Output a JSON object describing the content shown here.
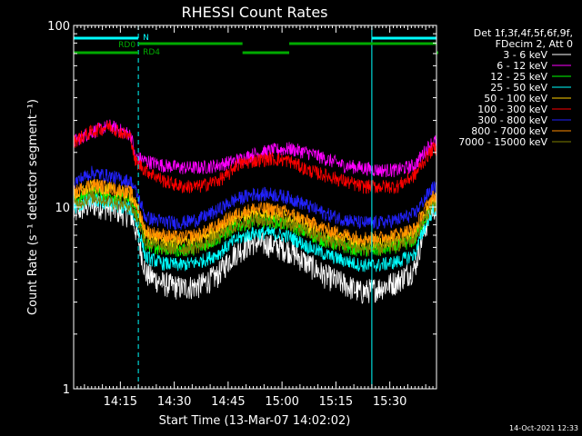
{
  "chart_data": {
    "type": "line",
    "title": "RHESSI Count Rates",
    "xlabel": "Start Time (13-Mar-07 14:02:02)",
    "ylabel": "Count Rate (s⁻¹ detector segment⁻¹)",
    "xlim_minutes": [
      0,
      101
    ],
    "ylim": [
      1,
      100
    ],
    "yscale": "log",
    "x_ticks": [
      {
        "label": "14:15",
        "minute": 13
      },
      {
        "label": "14:30",
        "minute": 28
      },
      {
        "label": "14:45",
        "minute": 43
      },
      {
        "label": "15:00",
        "minute": 58
      },
      {
        "label": "15:15",
        "minute": 73
      },
      {
        "label": "15:30",
        "minute": 88
      }
    ],
    "y_ticks": [
      {
        "label": "1",
        "value": 1
      },
      {
        "label": "10",
        "value": 10
      },
      {
        "label": "100",
        "value": 100
      }
    ],
    "legend_header": [
      "Det 1f,3f,4f,5f,6f,9f,",
      "FDecim 2, Att 0"
    ],
    "legend_position": "right",
    "series": [
      {
        "name": "3 - 6 keV",
        "color": "#ffffff",
        "x": [
          0,
          5,
          10,
          16,
          20,
          25,
          30,
          35,
          40,
          45,
          50,
          55,
          60,
          65,
          70,
          75,
          80,
          85,
          90,
          95,
          100
        ],
        "y": [
          9.3,
          10.4,
          9.9,
          9.0,
          4.3,
          3.8,
          3.6,
          3.7,
          4.2,
          5.6,
          6.4,
          6.2,
          5.8,
          4.9,
          4.2,
          3.8,
          3.4,
          3.6,
          3.9,
          4.6,
          10.0
        ]
      },
      {
        "name": "6 - 12 keV",
        "color": "#ff00ff",
        "x": [
          0,
          5,
          10,
          16,
          17,
          20,
          25,
          30,
          35,
          40,
          45,
          50,
          55,
          60,
          65,
          70,
          75,
          80,
          85,
          90,
          95,
          100
        ],
        "y": [
          23,
          26,
          28,
          25,
          19,
          18,
          17,
          16.5,
          16.5,
          17,
          18,
          19.5,
          20.5,
          21,
          20,
          18.5,
          17,
          16.5,
          16,
          16,
          17,
          23
        ]
      },
      {
        "name": "12 - 25 keV",
        "color": "#00ff00",
        "x": [
          0,
          5,
          10,
          16,
          20,
          25,
          30,
          35,
          40,
          45,
          50,
          55,
          60,
          65,
          70,
          75,
          80,
          85,
          90,
          95,
          100
        ],
        "y": [
          10.8,
          12.2,
          11.6,
          10.8,
          6.2,
          5.9,
          5.8,
          6.0,
          6.7,
          7.8,
          8.4,
          8.4,
          8.0,
          7.2,
          6.5,
          6.1,
          5.8,
          5.8,
          6.1,
          6.6,
          10.4
        ]
      },
      {
        "name": "25 - 50 keV",
        "color": "#00ffff",
        "x": [
          0,
          5,
          10,
          16,
          20,
          25,
          30,
          35,
          40,
          45,
          50,
          55,
          60,
          65,
          70,
          75,
          80,
          85,
          90,
          95,
          100
        ],
        "y": [
          9.8,
          11.0,
          10.4,
          9.8,
          5.3,
          4.9,
          4.8,
          5.0,
          5.5,
          6.6,
          7.2,
          7.2,
          6.9,
          6.1,
          5.5,
          5.1,
          4.8,
          4.8,
          5.0,
          5.5,
          9.6
        ]
      },
      {
        "name": "50 - 100 keV",
        "color": "#ffd000",
        "x": [
          0,
          5,
          10,
          16,
          20,
          25,
          30,
          35,
          40,
          45,
          50,
          55,
          60,
          65,
          70,
          75,
          80,
          85,
          90,
          95,
          100
        ],
        "y": [
          11.6,
          13.0,
          12.4,
          11.6,
          7.0,
          6.6,
          6.4,
          6.7,
          7.4,
          8.6,
          9.3,
          9.3,
          8.8,
          7.9,
          7.1,
          6.7,
          6.4,
          6.4,
          6.7,
          7.2,
          11.0
        ]
      },
      {
        "name": "100 - 300 keV",
        "color": "#ff0000",
        "x": [
          0,
          5,
          10,
          16,
          17,
          20,
          25,
          30,
          35,
          40,
          43,
          45,
          50,
          55,
          60,
          65,
          70,
          75,
          80,
          85,
          90,
          95,
          100
        ],
        "y": [
          23,
          26,
          28,
          24,
          18,
          16,
          14,
          13,
          13,
          14,
          15,
          17,
          18,
          18.5,
          18,
          16,
          15,
          14,
          13,
          13,
          13,
          15,
          21
        ]
      },
      {
        "name": "300 - 800 keV",
        "color": "#2222ff",
        "x": [
          0,
          5,
          10,
          16,
          20,
          25,
          30,
          35,
          40,
          45,
          50,
          55,
          60,
          65,
          70,
          75,
          80,
          85,
          90,
          95,
          100
        ],
        "y": [
          13.6,
          15.5,
          14.8,
          13.8,
          8.8,
          8.3,
          8.2,
          8.6,
          9.6,
          11.0,
          11.8,
          11.8,
          11.3,
          10.2,
          9.2,
          8.6,
          8.2,
          8.2,
          8.5,
          9.2,
          12.8
        ]
      },
      {
        "name": "800 - 7000 keV",
        "color": "#ff8c00",
        "x": [
          0,
          5,
          10,
          16,
          20,
          25,
          30,
          35,
          40,
          45,
          50,
          55,
          60,
          65,
          70,
          75,
          80,
          85,
          90,
          95,
          100
        ],
        "y": [
          12.0,
          13.4,
          12.8,
          12.0,
          7.4,
          7.0,
          6.8,
          7.1,
          7.9,
          9.1,
          9.8,
          9.8,
          9.3,
          8.4,
          7.6,
          7.1,
          6.8,
          6.8,
          7.1,
          7.6,
          11.4
        ]
      },
      {
        "name": "7000 - 15000 keV",
        "color": "#808000",
        "x": [
          0,
          5,
          10,
          16,
          20,
          25,
          30,
          35,
          40,
          45,
          50,
          55,
          60,
          65,
          70,
          75,
          80,
          85,
          90,
          95,
          100
        ],
        "y": [
          10.2,
          11.4,
          10.8,
          10.2,
          6.4,
          6.0,
          5.9,
          6.1,
          6.8,
          7.9,
          8.5,
          8.5,
          8.1,
          7.3,
          6.6,
          6.2,
          5.9,
          5.9,
          6.2,
          6.7,
          10.2
        ]
      }
    ],
    "annotations": {
      "night_markers": [
        {
          "label": "N",
          "start_minute": 0,
          "end_minute": 18,
          "color": "#00ffff"
        },
        {
          "label": "",
          "start_minute": 83,
          "end_minute": 101,
          "color": "#00ffff"
        }
      ],
      "rd0_label": "RD0",
      "rd0_segments": [
        [
          18,
          47
        ],
        [
          60,
          101
        ]
      ],
      "rd4_label": "RD4",
      "rd4_segments": [
        [
          0,
          18
        ],
        [
          47,
          60
        ],
        [
          101,
          101
        ]
      ],
      "vertical_lines": [
        {
          "minute": 18,
          "style": "dashed"
        },
        {
          "minute": 83,
          "style": "solid"
        },
        {
          "minute": 101,
          "style": "dashed"
        }
      ]
    }
  },
  "footer": {
    "timestamp": "14-Oct-2021 12:33"
  }
}
